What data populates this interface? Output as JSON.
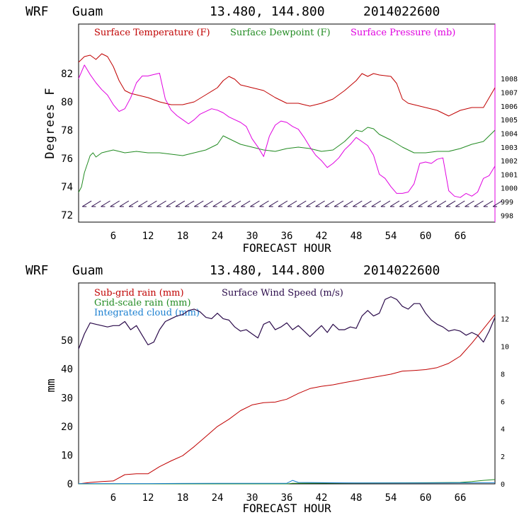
{
  "colors": {
    "temperature": "#c00000",
    "dewpoint": "#228b22",
    "pressure": "#e000e0",
    "wind": "#2a0a4a",
    "subgrid": "#c00000",
    "gridscale": "#228b22",
    "cloud": "#1a7fd0"
  },
  "chart_data": [
    {
      "type": "line",
      "header": {
        "model": "WRF",
        "location": "Guam",
        "coords": "13.480, 144.800",
        "date": "2014022600"
      },
      "title": "",
      "xlabel": "FORECAST HOUR",
      "ylabel": "Degrees F",
      "xlim": [
        0,
        72
      ],
      "ylim": [
        71.5,
        85.5
      ],
      "x_ticks": [
        "6",
        "12",
        "18",
        "24",
        "30",
        "36",
        "42",
        "48",
        "54",
        "60",
        "66"
      ],
      "y_ticks": [
        "72",
        "74",
        "76",
        "78",
        "80",
        "82"
      ],
      "y2lim": [
        997.5,
        1012
      ],
      "y2_ticks": [
        "998",
        "999",
        "1000",
        "1001",
        "1002",
        "1003",
        "1004",
        "1005",
        "1006",
        "1007",
        "1008"
      ],
      "legend": [
        "Surface Temperature (F)",
        "Surface Dewpoint (F)",
        "Surface Pressure (mb)"
      ],
      "grid": false,
      "series": [
        {
          "name": "Surface Temperature (F)",
          "axis": "left",
          "x": [
            0,
            1,
            2,
            3,
            4,
            5,
            6,
            7,
            8,
            9,
            10,
            12,
            14,
            16,
            18,
            20,
            22,
            24,
            25,
            26,
            27,
            28,
            30,
            32,
            34,
            36,
            38,
            40,
            42,
            44,
            46,
            48,
            49,
            50,
            51,
            52,
            54,
            55,
            56,
            57,
            58,
            60,
            62,
            64,
            66,
            68,
            70,
            72
          ],
          "y": [
            82.8,
            83.2,
            83.3,
            83.0,
            83.4,
            83.2,
            82.5,
            81.5,
            80.8,
            80.6,
            80.5,
            80.3,
            80.0,
            79.8,
            79.8,
            80.0,
            80.5,
            81.0,
            81.5,
            81.8,
            81.6,
            81.2,
            81.0,
            80.8,
            80.3,
            79.9,
            79.9,
            79.7,
            79.9,
            80.2,
            80.8,
            81.5,
            82.0,
            81.8,
            82.0,
            81.9,
            81.8,
            81.3,
            80.2,
            79.9,
            79.8,
            79.6,
            79.4,
            79.0,
            79.4,
            79.6,
            79.6,
            81.0
          ]
        },
        {
          "name": "Surface Dewpoint (F)",
          "axis": "left",
          "x": [
            0,
            0.5,
            1,
            2,
            2.5,
            3,
            4,
            5,
            6,
            8,
            10,
            12,
            14,
            16,
            18,
            20,
            22,
            24,
            25,
            26,
            27,
            28,
            30,
            32,
            34,
            36,
            38,
            40,
            42,
            44,
            46,
            48,
            49,
            50,
            51,
            52,
            54,
            56,
            58,
            60,
            62,
            64,
            66,
            68,
            70,
            72
          ],
          "y": [
            73.6,
            74.0,
            75.0,
            76.2,
            76.4,
            76.1,
            76.4,
            76.5,
            76.6,
            76.4,
            76.5,
            76.4,
            76.4,
            76.3,
            76.2,
            76.4,
            76.6,
            77.0,
            77.6,
            77.4,
            77.2,
            77.0,
            76.8,
            76.6,
            76.5,
            76.7,
            76.8,
            76.7,
            76.5,
            76.6,
            77.2,
            78.0,
            77.9,
            78.2,
            78.1,
            77.7,
            77.3,
            76.8,
            76.4,
            76.4,
            76.5,
            76.5,
            76.7,
            77.0,
            77.2,
            78.0
          ]
        },
        {
          "name": "Surface Pressure (mb)",
          "axis": "right",
          "x": [
            0,
            1,
            2,
            3,
            4,
            5,
            6,
            7,
            8,
            9,
            10,
            11,
            12,
            13,
            14,
            15,
            16,
            17,
            18,
            19,
            20,
            21,
            22,
            23,
            24,
            25,
            26,
            27,
            28,
            29,
            30,
            31,
            32,
            33,
            34,
            35,
            36,
            37,
            38,
            39,
            40,
            41,
            42,
            43,
            44,
            45,
            46,
            47,
            48,
            49,
            50,
            51,
            52,
            53,
            54,
            55,
            56,
            57,
            58,
            59,
            60,
            61,
            62,
            63,
            64,
            65,
            66,
            67,
            68,
            69,
            70,
            71,
            72
          ],
          "y": [
            1008.0,
            1009.0,
            1008.3,
            1007.7,
            1007.2,
            1006.8,
            1006.1,
            1005.6,
            1005.8,
            1006.6,
            1007.7,
            1008.2,
            1008.2,
            1008.3,
            1008.4,
            1006.5,
            1005.7,
            1005.3,
            1005.0,
            1004.7,
            1005.0,
            1005.4,
            1005.6,
            1005.8,
            1005.7,
            1005.5,
            1005.2,
            1005.0,
            1004.8,
            1004.5,
            1003.6,
            1003.0,
            1002.3,
            1003.8,
            1004.6,
            1004.9,
            1004.8,
            1004.5,
            1004.3,
            1003.7,
            1003.0,
            1002.4,
            1002.0,
            1001.5,
            1001.8,
            1002.2,
            1002.8,
            1003.2,
            1003.7,
            1003.4,
            1003.1,
            1002.4,
            1001.0,
            1000.7,
            1000.1,
            999.6,
            999.6,
            999.7,
            1000.3,
            1001.8,
            1001.9,
            1001.8,
            1002.1,
            1002.2,
            999.8,
            999.4,
            999.3,
            999.6,
            999.4,
            999.7,
            1000.7,
            1000.9,
            1001.6
          ]
        }
      ],
      "wind_barbs": {
        "y": 72.8,
        "x_start": 1,
        "x_end": 72,
        "count": 45
      }
    },
    {
      "type": "line",
      "header": {
        "model": "WRF",
        "location": "Guam",
        "coords": "13.480, 144.800",
        "date": "2014022600"
      },
      "title": "",
      "xlabel": "FORECAST HOUR",
      "ylabel": "mm",
      "xlim": [
        0,
        72
      ],
      "ylim": [
        0,
        70
      ],
      "x_ticks": [
        "6",
        "12",
        "18",
        "24",
        "30",
        "36",
        "42",
        "48",
        "54",
        "60",
        "66"
      ],
      "y_ticks": [
        "0",
        "10",
        "20",
        "30",
        "40",
        "50"
      ],
      "y2lim": [
        0,
        14.6
      ],
      "y2_ticks": [
        "0",
        "2",
        "4",
        "6",
        "8",
        "10",
        "12"
      ],
      "legend": [
        "Sub-grid rain (mm)",
        "Grid-scale rain (mm)",
        "Integrated cloud (mm)",
        "Surface Wind Speed (m/s)"
      ],
      "grid": false,
      "series": [
        {
          "name": "Sub-grid rain (mm)",
          "axis": "left",
          "x": [
            0,
            2,
            4,
            6,
            8,
            10,
            12,
            14,
            16,
            18,
            20,
            22,
            24,
            26,
            28,
            30,
            32,
            34,
            36,
            38,
            40,
            42,
            44,
            46,
            48,
            50,
            52,
            54,
            56,
            58,
            60,
            62,
            64,
            66,
            68,
            70,
            72
          ],
          "y": [
            0,
            0.5,
            0.8,
            1.0,
            3.2,
            3.5,
            3.5,
            6.0,
            8.0,
            9.8,
            13.0,
            16.5,
            20.0,
            22.5,
            25.5,
            27.5,
            28.3,
            28.5,
            29.5,
            31.5,
            33.2,
            34.0,
            34.5,
            35.3,
            36.0,
            36.8,
            37.5,
            38.2,
            39.3,
            39.5,
            39.8,
            40.5,
            42.0,
            44.5,
            49.0,
            54.0,
            59.0
          ]
        },
        {
          "name": "Grid-scale rain (mm)",
          "axis": "left",
          "x": [
            0,
            12,
            24,
            36,
            37,
            48,
            60,
            66,
            68,
            70,
            72
          ],
          "y": [
            0,
            0,
            0,
            0,
            0.2,
            0.3,
            0.4,
            0.5,
            0.8,
            1.2,
            1.5
          ]
        },
        {
          "name": "Integrated cloud (mm)",
          "axis": "left",
          "x": [
            0,
            12,
            24,
            36,
            37,
            38,
            48,
            60,
            72
          ],
          "y": [
            0.1,
            0.1,
            0.2,
            0.2,
            1.2,
            0.5,
            0.3,
            0.3,
            0.4
          ]
        },
        {
          "name": "Surface Wind Speed (m/s)",
          "axis": "right",
          "x": [
            0,
            1,
            2,
            3,
            4,
            5,
            6,
            7,
            8,
            9,
            10,
            11,
            12,
            13,
            14,
            15,
            16,
            17,
            18,
            19,
            20,
            21,
            22,
            23,
            24,
            25,
            26,
            27,
            28,
            29,
            30,
            31,
            32,
            33,
            34,
            35,
            36,
            37,
            38,
            39,
            40,
            41,
            42,
            43,
            44,
            45,
            46,
            47,
            48,
            49,
            50,
            51,
            52,
            53,
            54,
            55,
            56,
            57,
            58,
            59,
            60,
            61,
            62,
            63,
            64,
            65,
            66,
            67,
            68,
            69,
            70,
            71,
            72
          ],
          "y": [
            9.8,
            10.9,
            11.7,
            11.6,
            11.5,
            11.4,
            11.5,
            11.5,
            11.8,
            11.2,
            11.5,
            10.8,
            10.1,
            10.3,
            11.2,
            11.8,
            12.0,
            12.2,
            12.3,
            12.6,
            12.7,
            12.5,
            12.1,
            12.0,
            12.4,
            12.0,
            11.9,
            11.4,
            11.1,
            11.2,
            10.9,
            10.6,
            11.6,
            11.8,
            11.2,
            11.4,
            11.7,
            11.2,
            11.5,
            11.1,
            10.7,
            11.1,
            11.5,
            11.0,
            11.6,
            11.2,
            11.2,
            11.4,
            11.3,
            12.2,
            12.6,
            12.2,
            12.4,
            13.4,
            13.6,
            13.4,
            12.9,
            12.7,
            13.1,
            13.1,
            12.4,
            11.9,
            11.6,
            11.4,
            11.1,
            11.2,
            11.1,
            10.8,
            11.0,
            10.8,
            10.3,
            11.1,
            12.1
          ]
        }
      ]
    }
  ]
}
